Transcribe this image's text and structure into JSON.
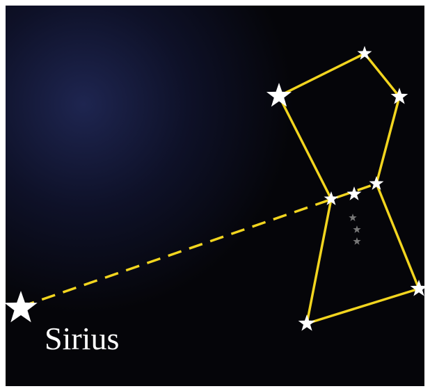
{
  "label": "Sirius"
}
